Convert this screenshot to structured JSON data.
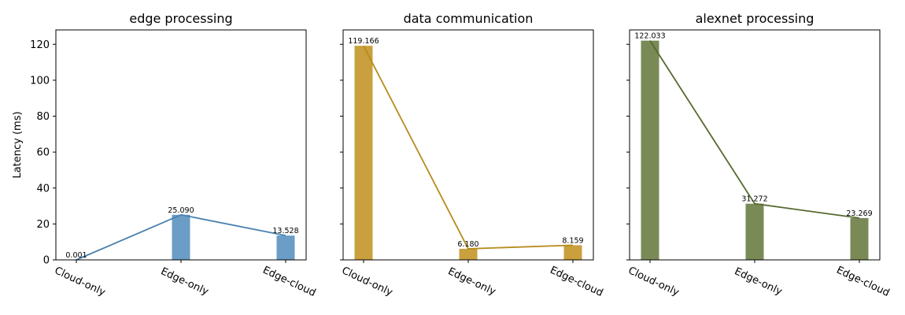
{
  "shared": {
    "categories": [
      "Cloud-only",
      "Edge-only",
      "Edge-cloud"
    ],
    "ylabel": "Latency (ms)",
    "ylim": [
      0,
      128
    ],
    "yticks": [
      0,
      20,
      40,
      60,
      80,
      100,
      120
    ]
  },
  "chart_data": [
    {
      "type": "bar",
      "title": "edge processing",
      "categories": [
        "Cloud-only",
        "Edge-only",
        "Edge-cloud"
      ],
      "values": [
        0.001,
        25.09,
        13.528
      ],
      "value_labels": [
        "0.001",
        "25.090",
        "13.528"
      ],
      "bar_color": "#6b9dc6",
      "line_color": "#4a81b0",
      "overlay_line": true,
      "ylabel": "Latency (ms)",
      "ylim": [
        0,
        128
      ]
    },
    {
      "type": "bar",
      "title": "data communication",
      "categories": [
        "Cloud-only",
        "Edge-only",
        "Edge-cloud"
      ],
      "values": [
        119.166,
        6.18,
        8.159
      ],
      "value_labels": [
        "119.166",
        "6.180",
        "8.159"
      ],
      "bar_color": "#c9a03d",
      "line_color": "#b78b1b",
      "overlay_line": true,
      "ylabel": "",
      "ylim": [
        0,
        128
      ]
    },
    {
      "type": "bar",
      "title": "alexnet processing",
      "categories": [
        "Cloud-only",
        "Edge-only",
        "Edge-cloud"
      ],
      "values": [
        122.033,
        31.272,
        23.269
      ],
      "value_labels": [
        "122.033",
        "31.272",
        "23.269"
      ],
      "bar_color": "#7a8a57",
      "line_color": "#566a2f",
      "overlay_line": true,
      "ylabel": "",
      "ylim": [
        0,
        128
      ]
    }
  ]
}
